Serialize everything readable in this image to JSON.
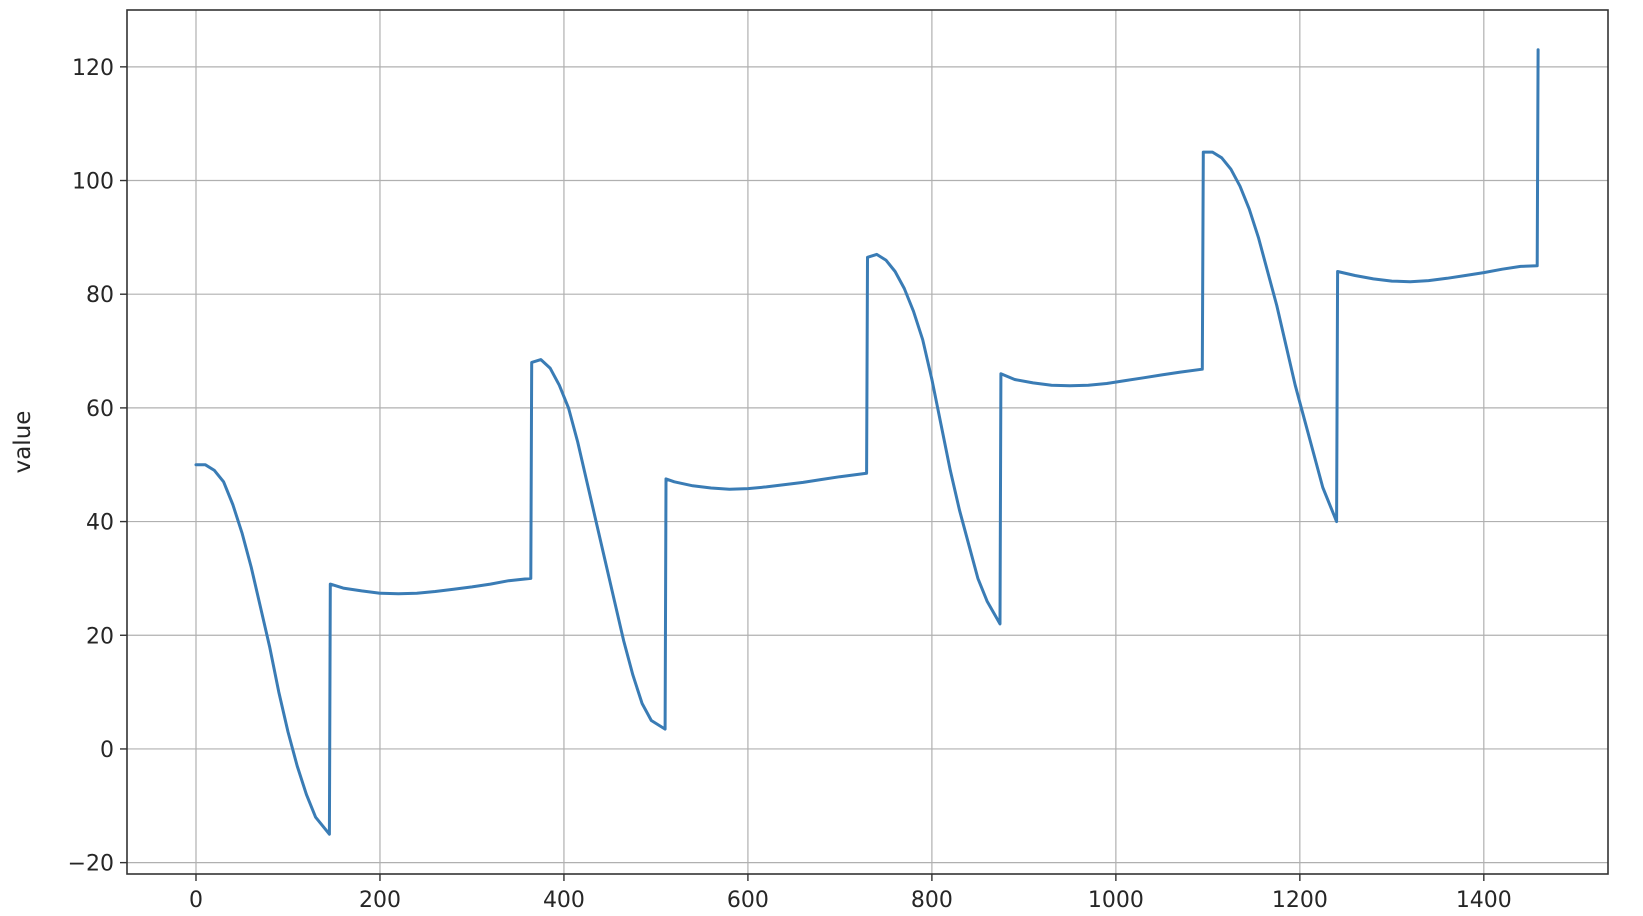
{
  "chart_data": {
    "type": "line",
    "title": "",
    "xlabel": "",
    "ylabel": "value",
    "xlim": [
      -75,
      1535
    ],
    "ylim": [
      -22,
      130
    ],
    "xticks": [
      0,
      200,
      400,
      600,
      800,
      1000,
      1200,
      1400
    ],
    "yticks": [
      -20,
      0,
      20,
      40,
      60,
      80,
      100,
      120
    ],
    "grid": true,
    "legend": "none",
    "series": [
      {
        "color": "#3a7cb5",
        "points": [
          [
            0,
            50
          ],
          [
            10,
            50
          ],
          [
            20,
            49
          ],
          [
            30,
            47
          ],
          [
            40,
            43
          ],
          [
            50,
            38
          ],
          [
            60,
            32
          ],
          [
            70,
            25
          ],
          [
            80,
            18
          ],
          [
            90,
            10
          ],
          [
            100,
            3
          ],
          [
            110,
            -3
          ],
          [
            120,
            -8
          ],
          [
            130,
            -12
          ],
          [
            145,
            -15
          ],
          [
            146,
            29
          ],
          [
            160,
            28.3
          ],
          [
            180,
            27.8
          ],
          [
            200,
            27.4
          ],
          [
            220,
            27.3
          ],
          [
            240,
            27.4
          ],
          [
            260,
            27.7
          ],
          [
            280,
            28.1
          ],
          [
            300,
            28.5
          ],
          [
            320,
            29
          ],
          [
            340,
            29.6
          ],
          [
            364,
            30
          ],
          [
            365,
            68
          ],
          [
            375,
            68.5
          ],
          [
            385,
            67
          ],
          [
            395,
            64
          ],
          [
            405,
            60
          ],
          [
            415,
            54
          ],
          [
            425,
            47
          ],
          [
            435,
            40
          ],
          [
            445,
            33
          ],
          [
            455,
            26
          ],
          [
            465,
            19
          ],
          [
            475,
            13
          ],
          [
            485,
            8
          ],
          [
            495,
            5
          ],
          [
            510,
            3.5
          ],
          [
            511,
            47.5
          ],
          [
            520,
            47
          ],
          [
            540,
            46.3
          ],
          [
            560,
            45.9
          ],
          [
            580,
            45.7
          ],
          [
            600,
            45.8
          ],
          [
            620,
            46.1
          ],
          [
            640,
            46.5
          ],
          [
            660,
            46.9
          ],
          [
            680,
            47.4
          ],
          [
            700,
            47.9
          ],
          [
            729,
            48.5
          ],
          [
            730,
            86.5
          ],
          [
            740,
            87
          ],
          [
            750,
            86
          ],
          [
            760,
            84
          ],
          [
            770,
            81
          ],
          [
            780,
            77
          ],
          [
            790,
            72
          ],
          [
            800,
            65
          ],
          [
            810,
            57
          ],
          [
            820,
            49
          ],
          [
            830,
            42
          ],
          [
            840,
            36
          ],
          [
            850,
            30
          ],
          [
            860,
            26
          ],
          [
            874,
            22
          ],
          [
            875,
            66
          ],
          [
            890,
            65
          ],
          [
            910,
            64.4
          ],
          [
            930,
            64
          ],
          [
            950,
            63.9
          ],
          [
            970,
            64
          ],
          [
            990,
            64.3
          ],
          [
            1010,
            64.8
          ],
          [
            1030,
            65.3
          ],
          [
            1050,
            65.8
          ],
          [
            1070,
            66.3
          ],
          [
            1094,
            66.8
          ],
          [
            1095,
            105
          ],
          [
            1105,
            105
          ],
          [
            1115,
            104
          ],
          [
            1125,
            102
          ],
          [
            1135,
            99
          ],
          [
            1145,
            95
          ],
          [
            1155,
            90
          ],
          [
            1165,
            84
          ],
          [
            1175,
            78
          ],
          [
            1185,
            71
          ],
          [
            1195,
            64
          ],
          [
            1205,
            58
          ],
          [
            1215,
            52
          ],
          [
            1225,
            46
          ],
          [
            1240,
            40
          ],
          [
            1241,
            84
          ],
          [
            1260,
            83.3
          ],
          [
            1280,
            82.7
          ],
          [
            1300,
            82.3
          ],
          [
            1320,
            82.2
          ],
          [
            1340,
            82.4
          ],
          [
            1360,
            82.8
          ],
          [
            1380,
            83.3
          ],
          [
            1400,
            83.8
          ],
          [
            1420,
            84.4
          ],
          [
            1440,
            84.9
          ],
          [
            1458,
            85
          ],
          [
            1459,
            123
          ]
        ]
      }
    ]
  }
}
